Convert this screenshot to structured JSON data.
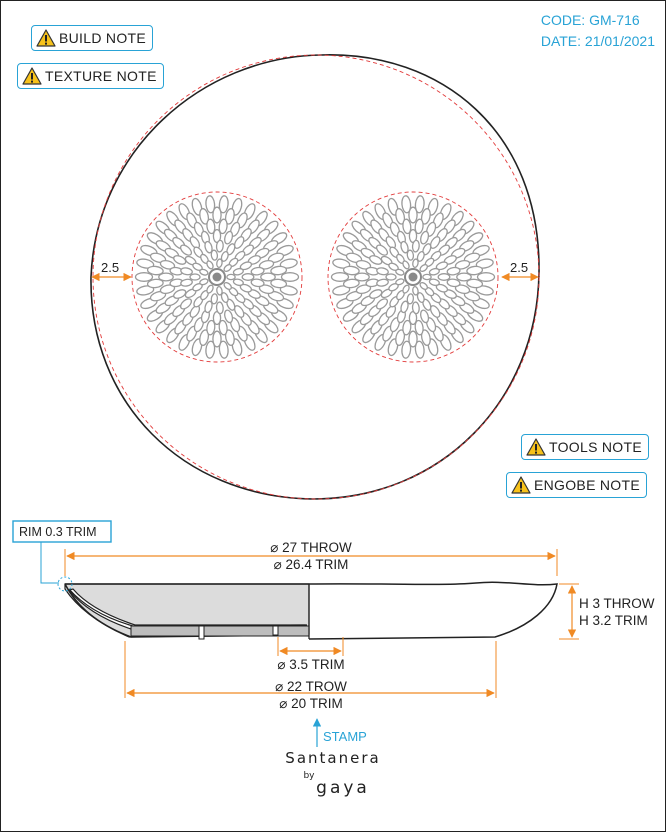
{
  "notes": {
    "build": "BUILD NOTE",
    "texture": "TEXTURE NOTE",
    "tools": "TOOLS NOTE",
    "engobe": "ENGOBE NOTE"
  },
  "header": {
    "code": "CODE: GM-716",
    "date": "DATE: 21/01/2021"
  },
  "top_view": {
    "margin_left": "2.5",
    "margin_right": "2.5"
  },
  "section_view": {
    "rim_label": "RIM 0.3 TRIM",
    "diameter_throw": "⌀ 27 THROW",
    "diameter_trim": "⌀ 26.4 TRIM",
    "height_throw": "H 3 THROW",
    "height_trim": "H 3.2 TRIM",
    "foot_trim": "⌀ 3.5 TRIM",
    "base_trow": "⌀ 22 TROW",
    "base_trim": "⌀ 20 TRIM",
    "stamp": "STAMP"
  },
  "brand": {
    "name": "Santanera",
    "by": "by",
    "sub": "gaya"
  },
  "colors": {
    "accent": "#29a3d6",
    "dimension": "#f08a24",
    "outline": "#222222",
    "trim_dash": "#e23b3b",
    "pattern": "#9a9a9a"
  }
}
